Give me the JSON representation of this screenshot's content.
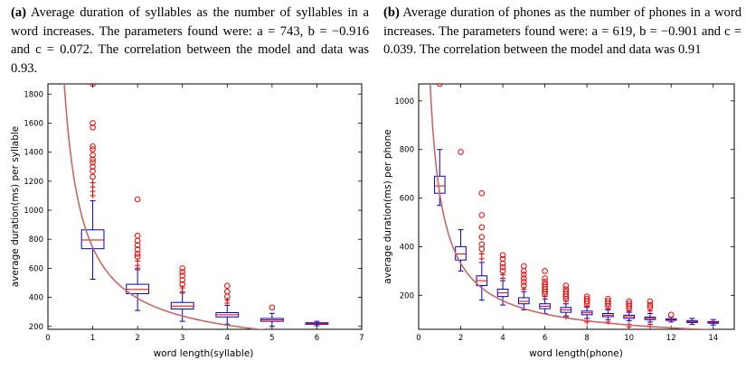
{
  "captions": {
    "a": {
      "label": "(a)",
      "text": "Average duration of syllables as the number of syllables in a word increases. The parameters found were: a = 743, b = −0.916 and c = 0.072. The correlation between the model and data was 0.93."
    },
    "b": {
      "label": "(b)",
      "text": "Average duration of phones as the number of phones in a word increases. The parameters found were: a = 619, b = −0.901 and c = 0.039. The correlation between the model and data was 0.91"
    }
  },
  "colors": {
    "box": "#0000cc",
    "outlier": "#ee0000",
    "curve": "#cc6666",
    "axis": "#000000"
  },
  "chart_data": [
    {
      "type": "box",
      "xlabel": "word length(syllable)",
      "ylabel": "average duration(ms) per syllable",
      "xlim": [
        0,
        7
      ],
      "ylim": [
        180,
        1870
      ],
      "xticks": [
        0,
        1,
        2,
        3,
        4,
        5,
        6,
        7
      ],
      "yticks": [
        200,
        400,
        600,
        800,
        1000,
        1200,
        1400,
        1600,
        1800
      ],
      "model": {
        "a": 743,
        "b": -0.916,
        "c": 0.072
      },
      "correlation": 0.93,
      "boxes": [
        {
          "x": 1,
          "whisker_low": 525,
          "q1": 735,
          "median": 795,
          "q3": 865,
          "whisker_high": 1065,
          "outliers": [
            1100,
            1130,
            1160,
            1190,
            1230,
            1270,
            1300,
            1330,
            1350,
            1380,
            1420,
            1440,
            1570,
            1600,
            1870
          ]
        },
        {
          "x": 2,
          "whisker_low": 310,
          "q1": 425,
          "median": 455,
          "q3": 490,
          "whisker_high": 590,
          "outliers": [
            600,
            620,
            650,
            680,
            700,
            730,
            760,
            790,
            825,
            1075
          ]
        },
        {
          "x": 3,
          "whisker_low": 235,
          "q1": 320,
          "median": 340,
          "q3": 365,
          "whisker_high": 430,
          "outliers": [
            440,
            465,
            490,
            520,
            550,
            575,
            600
          ]
        },
        {
          "x": 4,
          "whisker_low": 215,
          "q1": 265,
          "median": 280,
          "q3": 295,
          "whisker_high": 345,
          "outliers": [
            360,
            380,
            405,
            440,
            480
          ]
        },
        {
          "x": 5,
          "whisker_low": 200,
          "q1": 235,
          "median": 245,
          "q3": 255,
          "whisker_high": 290,
          "outliers": [
            330
          ]
        },
        {
          "x": 6,
          "whisker_low": 205,
          "q1": 215,
          "median": 220,
          "q3": 225,
          "whisker_high": 235,
          "outliers": []
        }
      ]
    },
    {
      "type": "box",
      "xlabel": "word length(phone)",
      "ylabel": "average duration(ms) per phone",
      "xlim": [
        0,
        15
      ],
      "ylim": [
        60,
        1070
      ],
      "xticks": [
        0,
        2,
        4,
        6,
        8,
        10,
        12,
        14
      ],
      "yticks": [
        200,
        400,
        600,
        800,
        1000
      ],
      "model": {
        "a": 619,
        "b": -0.901,
        "c": 0.039
      },
      "correlation": 0.91,
      "boxes": [
        {
          "x": 1,
          "whisker_low": 570,
          "q1": 620,
          "median": 650,
          "q3": 690,
          "whisker_high": 800,
          "outliers": [
            1070
          ]
        },
        {
          "x": 2,
          "whisker_low": 300,
          "q1": 345,
          "median": 370,
          "q3": 400,
          "whisker_high": 470,
          "outliers": [
            790
          ]
        },
        {
          "x": 3,
          "whisker_low": 180,
          "q1": 240,
          "median": 260,
          "q3": 280,
          "whisker_high": 335,
          "outliers": [
            350,
            370,
            390,
            410,
            440,
            480,
            530,
            620
          ]
        },
        {
          "x": 4,
          "whisker_low": 160,
          "q1": 195,
          "median": 210,
          "q3": 225,
          "whisker_high": 260,
          "outliers": [
            270,
            285,
            300,
            315,
            330,
            350,
            365
          ]
        },
        {
          "x": 5,
          "whisker_low": 140,
          "q1": 165,
          "median": 175,
          "q3": 190,
          "whisker_high": 215,
          "outliers": [
            225,
            240,
            255,
            270,
            285,
            300,
            320
          ]
        },
        {
          "x": 6,
          "whisker_low": 125,
          "q1": 145,
          "median": 155,
          "q3": 165,
          "whisker_high": 185,
          "outliers": [
            195,
            205,
            215,
            225,
            235,
            245,
            255,
            270,
            300
          ]
        },
        {
          "x": 7,
          "whisker_low": 115,
          "q1": 130,
          "median": 140,
          "q3": 150,
          "whisker_high": 165,
          "outliers": [
            175,
            185,
            195,
            205,
            215,
            225,
            240,
            110
          ]
        },
        {
          "x": 8,
          "whisker_low": 105,
          "q1": 120,
          "median": 128,
          "q3": 135,
          "whisker_high": 150,
          "outliers": [
            155,
            165,
            175,
            185,
            195,
            95,
            90
          ]
        },
        {
          "x": 9,
          "whisker_low": 100,
          "q1": 112,
          "median": 118,
          "q3": 125,
          "whisker_high": 140,
          "outliers": [
            145,
            155,
            165,
            175,
            185,
            90
          ]
        },
        {
          "x": 10,
          "whisker_low": 95,
          "q1": 105,
          "median": 112,
          "q3": 118,
          "whisker_high": 130,
          "outliers": [
            135,
            145,
            155,
            165,
            175,
            80,
            70
          ]
        },
        {
          "x": 11,
          "whisker_low": 90,
          "q1": 100,
          "median": 105,
          "q3": 110,
          "whisker_high": 125,
          "outliers": [
            135,
            150,
            160,
            175,
            80,
            70
          ]
        },
        {
          "x": 12,
          "whisker_low": 90,
          "q1": 97,
          "median": 100,
          "q3": 103,
          "whisker_high": 110,
          "outliers": [
            120
          ]
        },
        {
          "x": 13,
          "whisker_low": 80,
          "q1": 88,
          "median": 92,
          "q3": 96,
          "whisker_high": 105,
          "outliers": []
        },
        {
          "x": 14,
          "whisker_low": 78,
          "q1": 85,
          "median": 88,
          "q3": 92,
          "whisker_high": 100,
          "outliers": []
        }
      ]
    }
  ]
}
